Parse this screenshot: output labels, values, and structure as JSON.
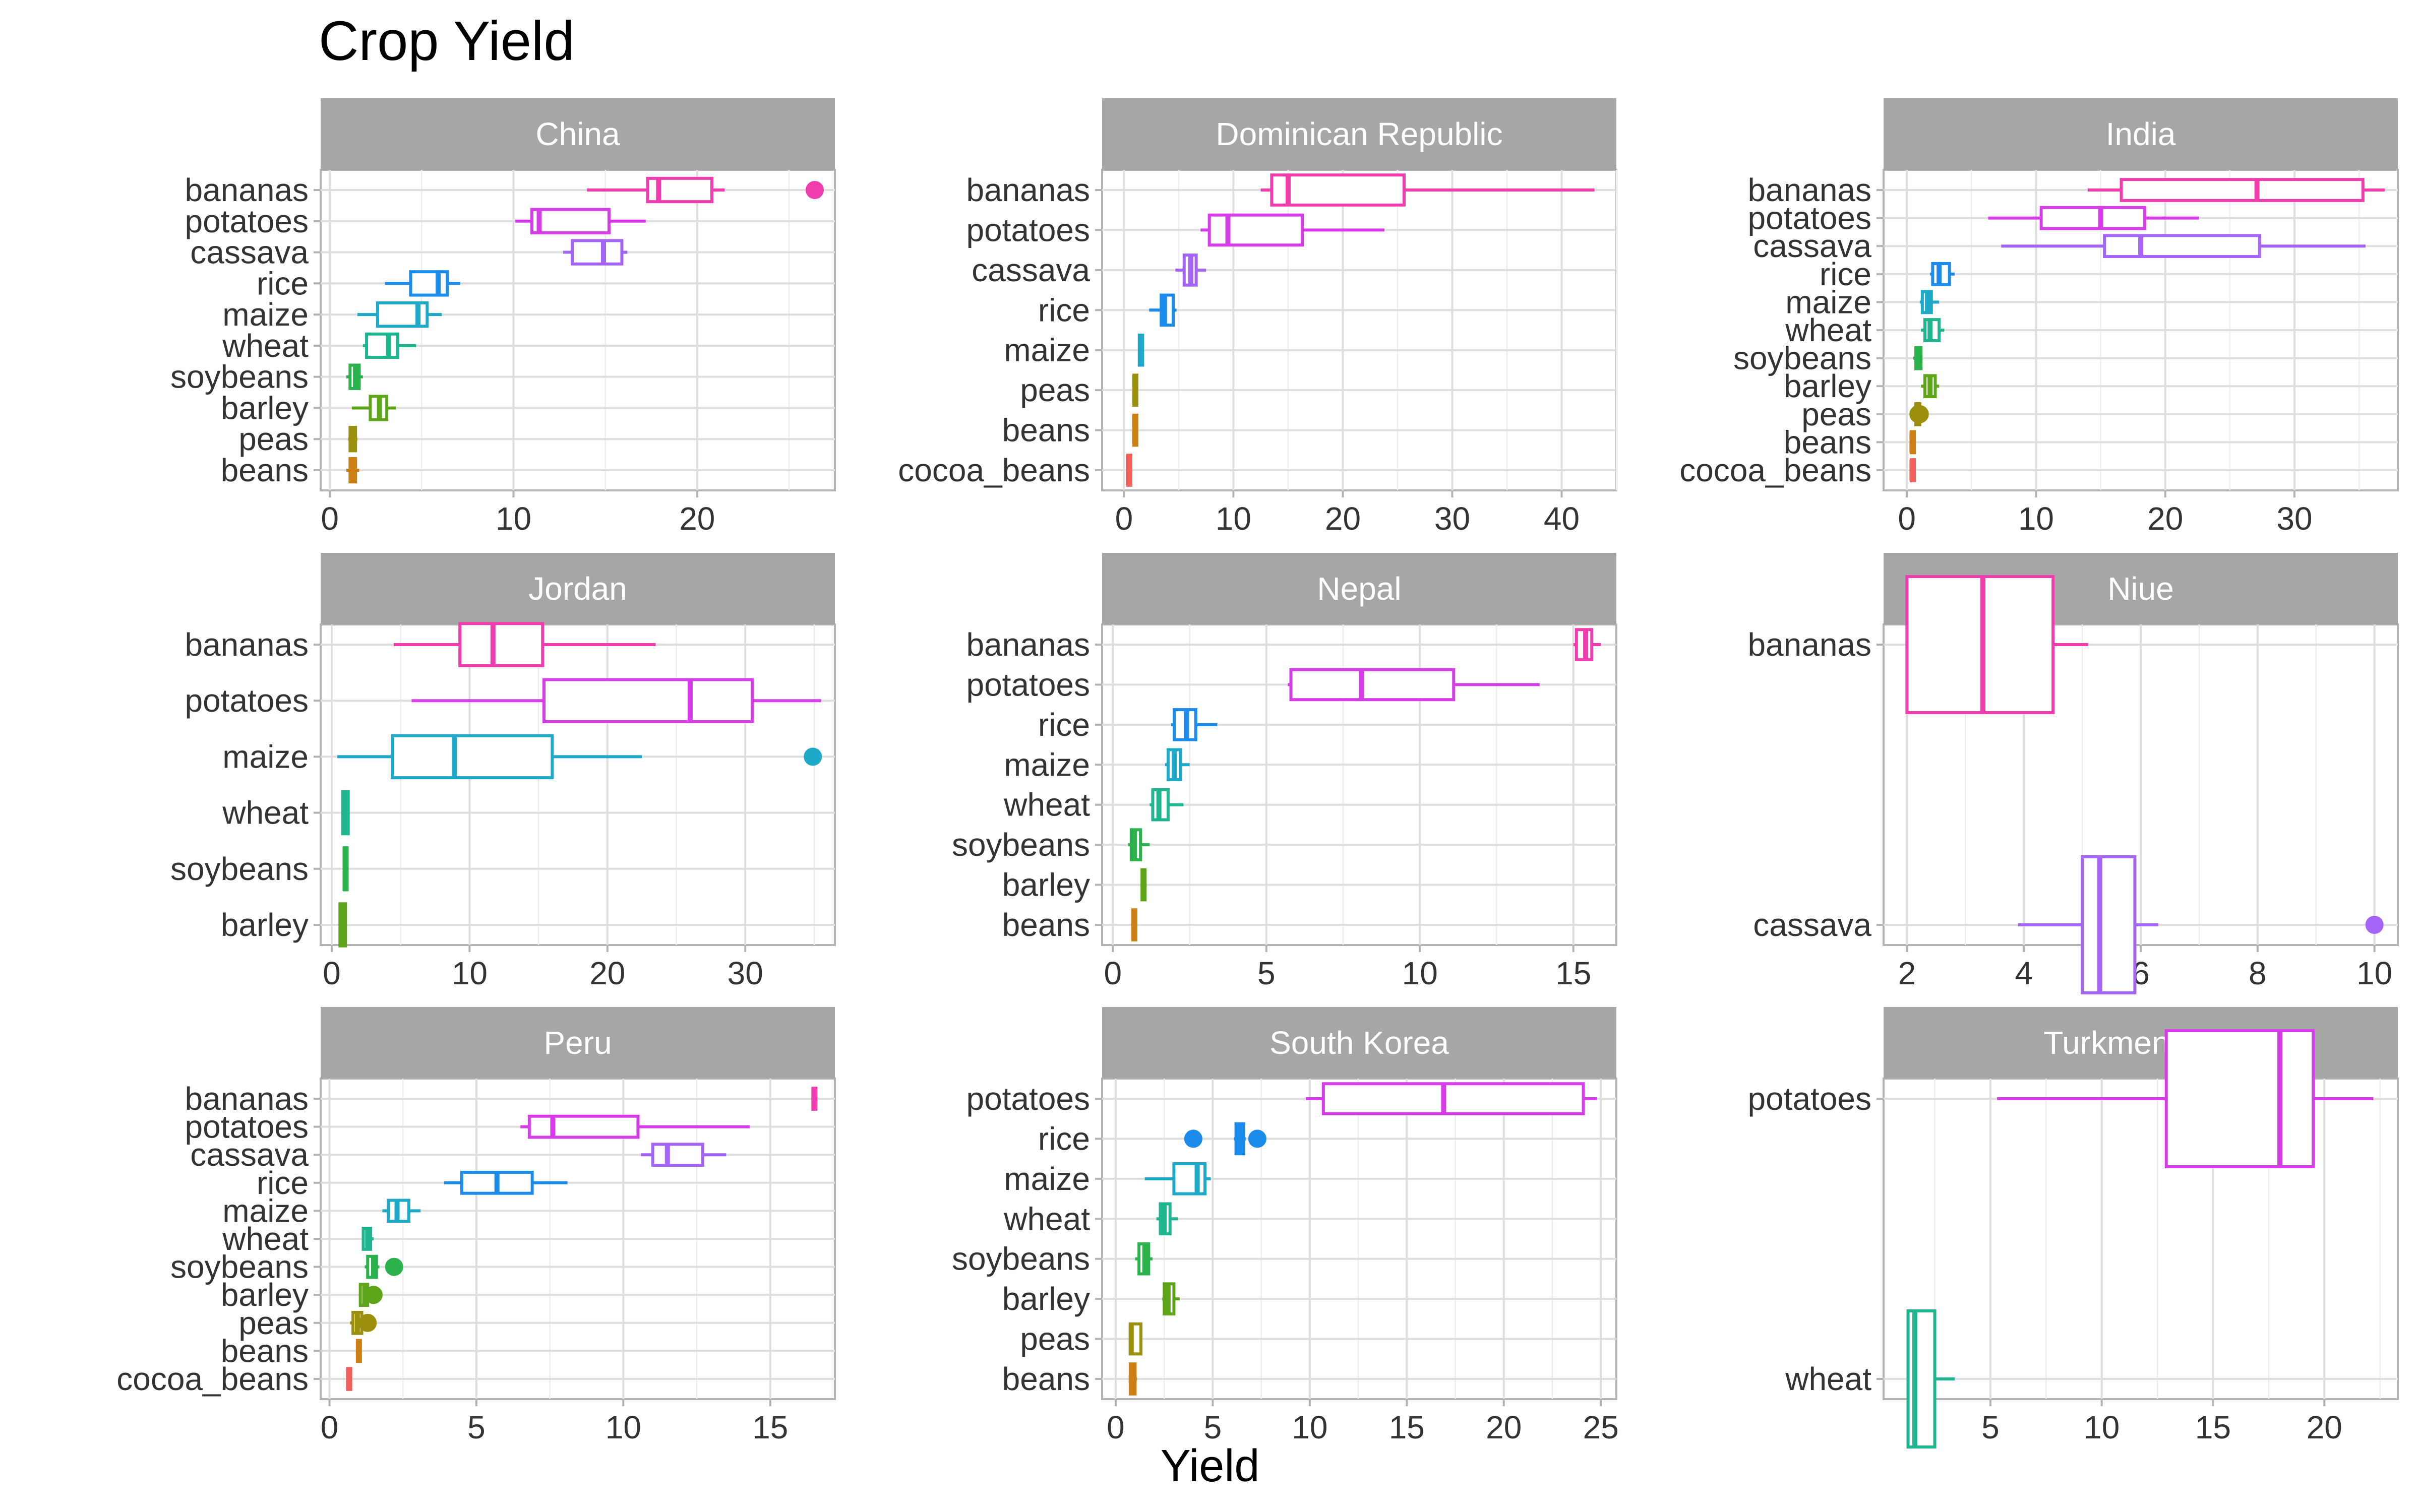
{
  "title": "Crop Yield",
  "xlabel": "Yield",
  "colors": {
    "bananas": "#F03DAE",
    "potatoes": "#D63CE8",
    "cassava": "#A464F6",
    "rice": "#1C8CEC",
    "maize": "#1FA9C9",
    "wheat": "#1FB58F",
    "soybeans": "#2BB24C",
    "barley": "#5FA519",
    "peas": "#9C8F0E",
    "beans": "#CC8014",
    "cocoa_beans": "#F2605B"
  },
  "chart_data": [
    {
      "type": "boxplot",
      "facet": "China",
      "xlim": [
        -0.5,
        27.5
      ],
      "xticks": [
        0,
        10,
        20
      ],
      "categories": [
        "bananas",
        "potatoes",
        "cassava",
        "rice",
        "maize",
        "wheat",
        "soybeans",
        "barley",
        "peas",
        "beans"
      ],
      "boxes": [
        {
          "category": "bananas",
          "min": 14,
          "q1": 17.3,
          "median": 17.9,
          "q3": 20.8,
          "max": 21.5,
          "outliers": [
            26.4
          ]
        },
        {
          "category": "potatoes",
          "min": 10.1,
          "q1": 11.0,
          "median": 11.4,
          "q3": 15.2,
          "max": 17.2,
          "outliers": []
        },
        {
          "category": "cassava",
          "min": 12.7,
          "q1": 13.2,
          "median": 14.9,
          "q3": 15.9,
          "max": 16.2,
          "outliers": []
        },
        {
          "category": "rice",
          "min": 3.0,
          "q1": 4.4,
          "median": 5.9,
          "q3": 6.4,
          "max": 7.1,
          "outliers": []
        },
        {
          "category": "maize",
          "min": 1.5,
          "q1": 2.6,
          "median": 4.8,
          "q3": 5.3,
          "max": 6.1,
          "outliers": []
        },
        {
          "category": "wheat",
          "min": 1.8,
          "q1": 2.0,
          "median": 3.2,
          "q3": 3.7,
          "max": 4.7,
          "outliers": []
        },
        {
          "category": "soybeans",
          "min": 0.9,
          "q1": 1.1,
          "median": 1.4,
          "q3": 1.6,
          "max": 1.8,
          "outliers": []
        },
        {
          "category": "barley",
          "min": 1.2,
          "q1": 2.2,
          "median": 2.7,
          "q3": 3.1,
          "max": 3.6,
          "outliers": []
        },
        {
          "category": "peas",
          "min": 1.0,
          "q1": 1.1,
          "median": 1.2,
          "q3": 1.4,
          "max": 1.5,
          "outliers": []
        },
        {
          "category": "beans",
          "min": 0.9,
          "q1": 1.1,
          "median": 1.3,
          "q3": 1.4,
          "max": 1.6,
          "outliers": []
        }
      ]
    },
    {
      "type": "boxplot",
      "facet": "Dominican Republic",
      "xlim": [
        -2,
        45
      ],
      "xticks": [
        0,
        10,
        20,
        30,
        40
      ],
      "categories": [
        "bananas",
        "potatoes",
        "cassava",
        "rice",
        "maize",
        "peas",
        "beans",
        "cocoa_beans"
      ],
      "boxes": [
        {
          "category": "bananas",
          "min": 12.5,
          "q1": 13.5,
          "median": 15.0,
          "q3": 25.6,
          "max": 43.0,
          "outliers": []
        },
        {
          "category": "potatoes",
          "min": 7.0,
          "q1": 7.8,
          "median": 9.5,
          "q3": 16.3,
          "max": 23.8,
          "outliers": []
        },
        {
          "category": "cassava",
          "min": 4.7,
          "q1": 5.5,
          "median": 6.1,
          "q3": 6.6,
          "max": 7.5,
          "outliers": []
        },
        {
          "category": "rice",
          "min": 2.3,
          "q1": 3.4,
          "median": 3.7,
          "q3": 4.5,
          "max": 4.8,
          "outliers": []
        },
        {
          "category": "maize",
          "min": 1.3,
          "q1": 1.4,
          "median": 1.5,
          "q3": 1.7,
          "max": 1.8,
          "outliers": []
        },
        {
          "category": "peas",
          "min": 0.8,
          "q1": 0.9,
          "median": 1.0,
          "q3": 1.1,
          "max": 1.2,
          "outliers": []
        },
        {
          "category": "beans",
          "min": 0.8,
          "q1": 0.9,
          "median": 1.0,
          "q3": 1.1,
          "max": 1.2,
          "outliers": []
        },
        {
          "category": "cocoa_beans",
          "min": 0.3,
          "q1": 0.35,
          "median": 0.4,
          "q3": 0.45,
          "max": 0.5,
          "outliers": []
        }
      ]
    },
    {
      "type": "boxplot",
      "facet": "India",
      "xlim": [
        -1.8,
        38
      ],
      "xticks": [
        0,
        10,
        20,
        30
      ],
      "categories": [
        "bananas",
        "potatoes",
        "cassava",
        "rice",
        "maize",
        "wheat",
        "soybeans",
        "barley",
        "peas",
        "beans",
        "cocoa_beans"
      ],
      "boxes": [
        {
          "category": "bananas",
          "min": 14.0,
          "q1": 16.6,
          "median": 27.1,
          "q3": 35.3,
          "max": 37.0,
          "outliers": []
        },
        {
          "category": "potatoes",
          "min": 6.3,
          "q1": 10.4,
          "median": 15.0,
          "q3": 18.4,
          "max": 22.6,
          "outliers": []
        },
        {
          "category": "cassava",
          "min": 7.3,
          "q1": 15.3,
          "median": 18.1,
          "q3": 27.3,
          "max": 35.5,
          "outliers": []
        },
        {
          "category": "rice",
          "min": 1.8,
          "q1": 2.0,
          "median": 2.5,
          "q3": 3.3,
          "max": 3.7,
          "outliers": []
        },
        {
          "category": "maize",
          "min": 1.0,
          "q1": 1.2,
          "median": 1.6,
          "q3": 1.9,
          "max": 2.5,
          "outliers": []
        },
        {
          "category": "wheat",
          "min": 1.1,
          "q1": 1.4,
          "median": 1.8,
          "q3": 2.5,
          "max": 2.9,
          "outliers": []
        },
        {
          "category": "soybeans",
          "min": 0.5,
          "q1": 0.7,
          "median": 0.9,
          "q3": 1.1,
          "max": 1.2,
          "outliers": []
        },
        {
          "category": "barley",
          "min": 1.1,
          "q1": 1.4,
          "median": 1.8,
          "q3": 2.2,
          "max": 2.5,
          "outliers": []
        },
        {
          "category": "peas",
          "min": 0.5,
          "q1": 0.7,
          "median": 0.8,
          "q3": 1.0,
          "max": 1.1,
          "outliers": [
            0.9,
            1.0
          ]
        },
        {
          "category": "beans",
          "min": 0.3,
          "q1": 0.35,
          "median": 0.4,
          "q3": 0.5,
          "max": 0.6,
          "outliers": []
        },
        {
          "category": "cocoa_beans",
          "min": 0.3,
          "q1": 0.35,
          "median": 0.4,
          "q3": 0.5,
          "max": 0.6,
          "outliers": []
        }
      ]
    },
    {
      "type": "boxplot",
      "facet": "Jordan",
      "xlim": [
        -0.8,
        36.5
      ],
      "xticks": [
        0,
        10,
        20,
        30
      ],
      "categories": [
        "bananas",
        "potatoes",
        "maize",
        "wheat",
        "soybeans",
        "barley"
      ],
      "boxes": [
        {
          "category": "bananas",
          "min": 4.5,
          "q1": 9.3,
          "median": 11.7,
          "q3": 15.3,
          "max": 23.5,
          "outliers": []
        },
        {
          "category": "potatoes",
          "min": 5.8,
          "q1": 15.4,
          "median": 26.0,
          "q3": 30.5,
          "max": 35.5,
          "outliers": []
        },
        {
          "category": "maize",
          "min": 0.4,
          "q1": 4.4,
          "median": 8.9,
          "q3": 16.0,
          "max": 22.5,
          "outliers": [
            34.9
          ]
        },
        {
          "category": "wheat",
          "min": 0.7,
          "q1": 0.8,
          "median": 1.0,
          "q3": 1.2,
          "max": 1.3,
          "outliers": []
        },
        {
          "category": "soybeans",
          "min": 0.8,
          "q1": 0.9,
          "median": 1.0,
          "q3": 1.1,
          "max": 1.2,
          "outliers": []
        },
        {
          "category": "barley",
          "min": 0.5,
          "q1": 0.6,
          "median": 0.8,
          "q3": 1.0,
          "max": 1.1,
          "outliers": []
        }
      ]
    },
    {
      "type": "boxplot",
      "facet": "Nepal",
      "xlim": [
        -0.35,
        16.4
      ],
      "xticks": [
        0,
        5,
        10,
        15
      ],
      "categories": [
        "bananas",
        "potatoes",
        "rice",
        "maize",
        "wheat",
        "soybeans",
        "barley",
        "beans"
      ],
      "boxes": [
        {
          "category": "bananas",
          "min": 15.0,
          "q1": 15.1,
          "median": 15.4,
          "q3": 15.6,
          "max": 15.9,
          "outliers": []
        },
        {
          "category": "potatoes",
          "min": 5.7,
          "q1": 5.8,
          "median": 8.1,
          "q3": 11.1,
          "max": 13.9,
          "outliers": []
        },
        {
          "category": "rice",
          "min": 1.9,
          "q1": 2.0,
          "median": 2.4,
          "q3": 2.7,
          "max": 3.4,
          "outliers": []
        },
        {
          "category": "maize",
          "min": 1.7,
          "q1": 1.8,
          "median": 2.0,
          "q3": 2.2,
          "max": 2.5,
          "outliers": []
        },
        {
          "category": "wheat",
          "min": 1.2,
          "q1": 1.3,
          "median": 1.5,
          "q3": 1.8,
          "max": 2.3,
          "outliers": []
        },
        {
          "category": "soybeans",
          "min": 0.5,
          "q1": 0.6,
          "median": 0.7,
          "q3": 0.9,
          "max": 1.2,
          "outliers": []
        },
        {
          "category": "barley",
          "min": 0.9,
          "q1": 0.95,
          "median": 1.0,
          "q3": 1.05,
          "max": 1.1,
          "outliers": []
        },
        {
          "category": "beans",
          "min": 0.6,
          "q1": 0.65,
          "median": 0.7,
          "q3": 0.75,
          "max": 0.8,
          "outliers": []
        }
      ]
    },
    {
      "type": "boxplot",
      "facet": "Niue",
      "xlim": [
        1.6,
        10.4
      ],
      "xticks": [
        2,
        4,
        6,
        8,
        10
      ],
      "categories": [
        "bananas",
        "cassava"
      ],
      "boxes": [
        {
          "category": "bananas",
          "min": 2.0,
          "q1": 2.0,
          "median": 3.3,
          "q3": 4.5,
          "max": 5.1,
          "outliers": []
        },
        {
          "category": "cassava",
          "min": 3.9,
          "q1": 5.0,
          "median": 5.3,
          "q3": 5.9,
          "max": 6.3,
          "outliers": [
            10.0
          ]
        }
      ]
    },
    {
      "type": "boxplot",
      "facet": "Peru",
      "xlim": [
        -0.3,
        17.2
      ],
      "xticks": [
        0,
        5,
        10,
        15
      ],
      "categories": [
        "bananas",
        "potatoes",
        "cassava",
        "rice",
        "maize",
        "wheat",
        "soybeans",
        "barley",
        "peas",
        "beans",
        "cocoa_beans"
      ],
      "boxes": [
        {
          "category": "bananas",
          "min": 16.4,
          "q1": 16.45,
          "median": 16.5,
          "q3": 16.55,
          "max": 16.6,
          "outliers": []
        },
        {
          "category": "potatoes",
          "min": 6.5,
          "q1": 6.8,
          "median": 7.6,
          "q3": 10.5,
          "max": 14.3,
          "outliers": []
        },
        {
          "category": "cassava",
          "min": 10.6,
          "q1": 11.0,
          "median": 11.5,
          "q3": 12.7,
          "max": 13.5,
          "outliers": []
        },
        {
          "category": "rice",
          "min": 3.9,
          "q1": 4.5,
          "median": 5.7,
          "q3": 6.9,
          "max": 8.1,
          "outliers": []
        },
        {
          "category": "maize",
          "min": 1.8,
          "q1": 2.0,
          "median": 2.3,
          "q3": 2.7,
          "max": 3.1,
          "outliers": []
        },
        {
          "category": "wheat",
          "min": 1.1,
          "q1": 1.15,
          "median": 1.3,
          "q3": 1.4,
          "max": 1.5,
          "outliers": []
        },
        {
          "category": "soybeans",
          "min": 1.2,
          "q1": 1.3,
          "median": 1.5,
          "q3": 1.6,
          "max": 1.7,
          "outliers": [
            2.2
          ]
        },
        {
          "category": "barley",
          "min": 1.0,
          "q1": 1.05,
          "median": 1.2,
          "q3": 1.3,
          "max": 1.4,
          "outliers": [
            1.5
          ]
        },
        {
          "category": "peas",
          "min": 0.7,
          "q1": 0.8,
          "median": 0.95,
          "q3": 1.1,
          "max": 1.2,
          "outliers": [
            1.3
          ]
        },
        {
          "category": "beans",
          "min": 0.9,
          "q1": 0.95,
          "median": 1.0,
          "q3": 1.05,
          "max": 1.1,
          "outliers": []
        },
        {
          "category": "cocoa_beans",
          "min": 0.6,
          "q1": 0.62,
          "median": 0.65,
          "q3": 0.68,
          "max": 0.7,
          "outliers": []
        }
      ]
    },
    {
      "type": "boxplot",
      "facet": "South Korea",
      "xlim": [
        -0.7,
        25.8
      ],
      "xticks": [
        0,
        5,
        10,
        15,
        20,
        25
      ],
      "categories": [
        "potatoes",
        "rice",
        "maize",
        "wheat",
        "soybeans",
        "barley",
        "peas",
        "beans"
      ],
      "boxes": [
        {
          "category": "potatoes",
          "min": 9.8,
          "q1": 10.7,
          "median": 16.9,
          "q3": 24.1,
          "max": 24.8,
          "outliers": []
        },
        {
          "category": "rice",
          "min": 6.1,
          "q1": 6.2,
          "median": 6.4,
          "q3": 6.6,
          "max": 6.7,
          "outliers": [
            4.0,
            7.3
          ]
        },
        {
          "category": "maize",
          "min": 1.5,
          "q1": 3.0,
          "median": 4.2,
          "q3": 4.6,
          "max": 4.9,
          "outliers": []
        },
        {
          "category": "wheat",
          "min": 2.1,
          "q1": 2.3,
          "median": 2.5,
          "q3": 2.8,
          "max": 3.2,
          "outliers": []
        },
        {
          "category": "soybeans",
          "min": 1.0,
          "q1": 1.2,
          "median": 1.5,
          "q3": 1.7,
          "max": 1.9,
          "outliers": []
        },
        {
          "category": "barley",
          "min": 2.4,
          "q1": 2.5,
          "median": 2.7,
          "q3": 3.0,
          "max": 3.3,
          "outliers": []
        },
        {
          "category": "peas",
          "min": 0.7,
          "q1": 0.75,
          "median": 0.8,
          "q3": 1.3,
          "max": 1.35,
          "outliers": []
        },
        {
          "category": "beans",
          "min": 0.7,
          "q1": 0.75,
          "median": 0.9,
          "q3": 1.0,
          "max": 1.1,
          "outliers": []
        }
      ]
    },
    {
      "type": "boxplot",
      "facet": "Turkmenistan",
      "xlim": [
        0.2,
        23.3
      ],
      "xticks": [
        5,
        10,
        15,
        20
      ],
      "categories": [
        "potatoes",
        "wheat"
      ],
      "boxes": [
        {
          "category": "potatoes",
          "min": 5.3,
          "q1": 12.9,
          "median": 18.0,
          "q3": 19.5,
          "max": 22.2,
          "outliers": []
        },
        {
          "category": "wheat",
          "min": 1.3,
          "q1": 1.3,
          "median": 1.6,
          "q3": 2.5,
          "max": 3.4,
          "outliers": []
        }
      ]
    }
  ]
}
